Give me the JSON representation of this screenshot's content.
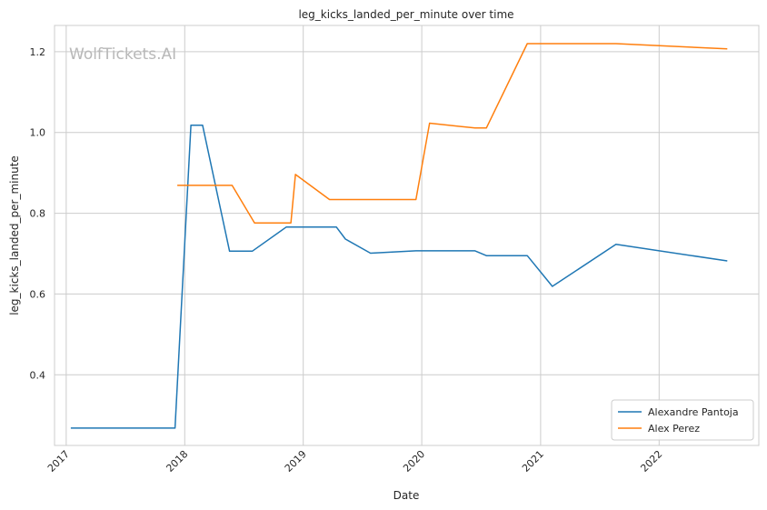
{
  "chart_data": {
    "type": "line",
    "title": "leg_kicks_landed_per_minute over time",
    "xlabel": "Date",
    "ylabel": "leg_kicks_landed_per_minute",
    "watermark": "WolfTickets.AI",
    "xlim": [
      "2016-11-26",
      "2022-11-04"
    ],
    "ylim": [
      0.225,
      1.265
    ],
    "x_ticks": [
      "2017",
      "2018",
      "2019",
      "2020",
      "2021",
      "2022"
    ],
    "y_ticks": [
      "0.4",
      "0.6",
      "0.8",
      "1.0",
      "1.2"
    ],
    "grid": true,
    "legend_position": "bottom-right",
    "series": [
      {
        "name": "Alexandre Pantoja",
        "color": "#1f77b4",
        "points": [
          [
            "2017-01-15",
            0.268
          ],
          [
            "2017-12-02",
            0.268
          ],
          [
            "2018-01-20",
            1.018
          ],
          [
            "2018-02-25",
            1.018
          ],
          [
            "2018-05-19",
            0.706
          ],
          [
            "2018-07-28",
            0.706
          ],
          [
            "2018-11-10",
            0.766
          ],
          [
            "2019-04-13",
            0.766
          ],
          [
            "2019-05-11",
            0.736
          ],
          [
            "2019-07-27",
            0.701
          ],
          [
            "2019-12-14",
            0.707
          ],
          [
            "2020-06-13",
            0.707
          ],
          [
            "2020-07-18",
            0.695
          ],
          [
            "2020-11-21",
            0.695
          ],
          [
            "2021-02-06",
            0.619
          ],
          [
            "2021-08-21",
            0.723
          ],
          [
            "2022-07-30",
            0.682
          ]
        ]
      },
      {
        "name": "Alex Perez",
        "color": "#ff7f0e",
        "points": [
          [
            "2017-12-09",
            0.869
          ],
          [
            "2018-05-27",
            0.869
          ],
          [
            "2018-08-04",
            0.776
          ],
          [
            "2018-11-24",
            0.776
          ],
          [
            "2018-12-08",
            0.896
          ],
          [
            "2019-03-23",
            0.834
          ],
          [
            "2019-12-14",
            0.834
          ],
          [
            "2020-01-25",
            1.023
          ],
          [
            "2020-06-13",
            1.011
          ],
          [
            "2020-07-18",
            1.011
          ],
          [
            "2020-11-21",
            1.22
          ],
          [
            "2021-08-21",
            1.22
          ],
          [
            "2022-07-30",
            1.207
          ]
        ]
      }
    ]
  }
}
